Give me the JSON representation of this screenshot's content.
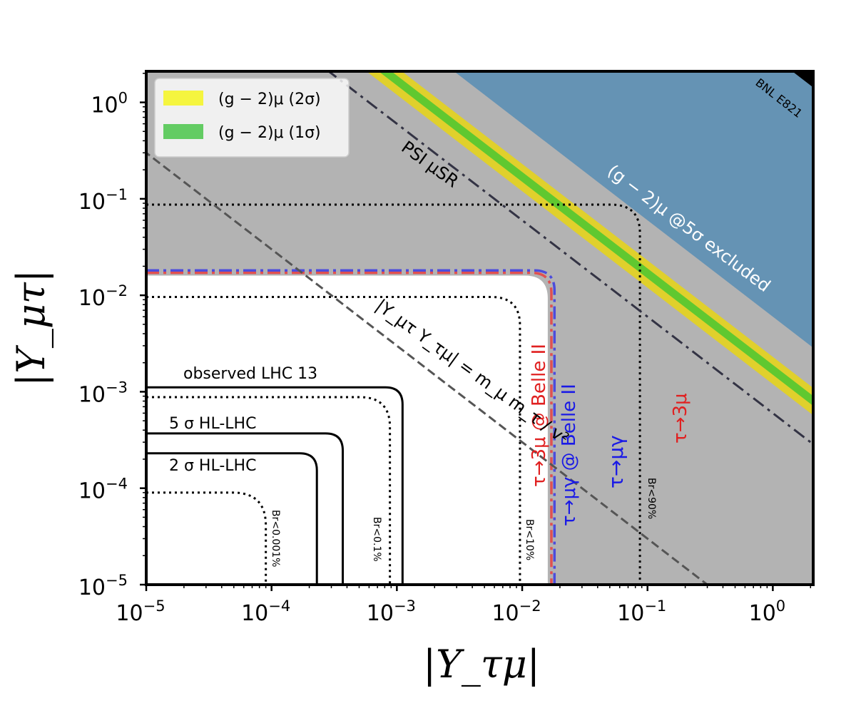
{
  "chart_data": {
    "type": "contour-exclusion",
    "title": "",
    "xlabel": "|Y_τμ|",
    "ylabel": "|Y_μτ|",
    "xscale": "log",
    "yscale": "log",
    "xlim": [
      1e-05,
      2.1
    ],
    "ylim": [
      1e-05,
      2.1
    ],
    "x_ticks": [
      {
        "value": 1e-05,
        "base": "10",
        "exp": "−5"
      },
      {
        "value": 0.0001,
        "base": "10",
        "exp": "−4"
      },
      {
        "value": 0.001,
        "base": "10",
        "exp": "−3"
      },
      {
        "value": 0.01,
        "base": "10",
        "exp": "−2"
      },
      {
        "value": 0.1,
        "base": "10",
        "exp": "−1"
      },
      {
        "value": 1,
        "base": "10",
        "exp": "0"
      }
    ],
    "y_ticks": [
      {
        "value": 1e-05,
        "base": "10",
        "exp": "−5"
      },
      {
        "value": 0.0001,
        "base": "10",
        "exp": "−4"
      },
      {
        "value": 0.001,
        "base": "10",
        "exp": "−3"
      },
      {
        "value": 0.01,
        "base": "10",
        "exp": "−2"
      },
      {
        "value": 0.1,
        "base": "10",
        "exp": "−1"
      },
      {
        "value": 1,
        "base": "10",
        "exp": "0"
      }
    ],
    "legend": {
      "placement": "top-left",
      "entries": [
        {
          "label": "(g − 2)μ (2σ)",
          "color": "#f5f53f"
        },
        {
          "label": "(g − 2)μ (1σ)",
          "color": "#63cc63"
        }
      ]
    },
    "regions": [
      {
        "name": "psi-musr-excluded",
        "kind": "band-excluded",
        "threshold": 0.13,
        "color": "#8a5a8e"
      },
      {
        "name": "tau-mu-gamma-excluded",
        "kind": "band-excluded",
        "threshold": 0.045,
        "color": "#8f91c2"
      },
      {
        "name": "gray-background",
        "kind": "band-excluded",
        "threshold": 0.016,
        "color": "#b3b3b3"
      },
      {
        "name": "g-2-5sigma-excluded",
        "kind": "product-above",
        "product": 0.006,
        "color": "#6593b4"
      },
      {
        "name": "bnl-e821",
        "kind": "product-above",
        "product": 3.0,
        "color": "#000000"
      }
    ],
    "g2_bands": [
      {
        "name": "2sigma",
        "product_low": 0.0012,
        "product_high": 0.0023,
        "color": "#e0d02c"
      },
      {
        "name": "1sigma",
        "product_low": 0.0015,
        "product_high": 0.0019,
        "color": "#60c830"
      }
    ],
    "reference_lines": [
      {
        "name": "psi-musr",
        "product": 0.0006,
        "style": "dash-dot",
        "color": "#333344"
      },
      {
        "name": "mass-relation",
        "product": 3e-06,
        "style": "dashed",
        "color": "#555555"
      }
    ],
    "contours": [
      {
        "name": "observed-lhc13",
        "style": "solid",
        "color": "#000000",
        "value": 0.00111
      },
      {
        "name": "hl-lhc-5sigma",
        "style": "solid",
        "color": "#000000",
        "value": 0.00037
      },
      {
        "name": "hl-lhc-2sigma",
        "style": "solid",
        "color": "#000000",
        "value": 0.00023
      },
      {
        "name": "br-0.001",
        "style": "dotted",
        "color": "#000000",
        "value": 9e-05
      },
      {
        "name": "br-0.1",
        "style": "dotted",
        "color": "#000000",
        "value": 0.00088
      },
      {
        "name": "br-10",
        "style": "dotted",
        "color": "#000000",
        "value": 0.0096
      },
      {
        "name": "br-90",
        "style": "dotted",
        "color": "#000000",
        "value": 0.087
      },
      {
        "name": "tau-3mu-belle2",
        "style": "dash-dot",
        "color": "#e05050",
        "value": 0.0171
      },
      {
        "name": "tau-mugamma-belle2",
        "style": "dash-dot",
        "color": "#4c4cdc",
        "value": 0.0181
      }
    ],
    "annotations": {
      "observed_lhc": "observed LHC 13",
      "hl_5sigma": "5 σ HL-LHC",
      "hl_2sigma": "2 σ HL-LHC",
      "br_0001": "Br<0.001%",
      "br_01": "Br<0.1%",
      "br_10": "Br<10%",
      "br_90": "Br<90%",
      "tau3mu_belle": "τ→3μ @ Belle II",
      "taumugamma_belle": "τ→μγ @ Belle II",
      "taumugamma": "τ→μγ",
      "tau3mu": "τ→3μ",
      "psi": "PSI μSR",
      "mass_relation": "|Y_μτ Y_τμ| = m_μ m_τ / v²",
      "g2_excluded": "(g − 2)μ @5σ excluded",
      "bnl": "BNL E821"
    },
    "colors": {
      "belle_tau3mu": "#e02020",
      "belle_mugamma": "#1a1ae6",
      "g2_excluded_text": "#ffffff"
    }
  }
}
